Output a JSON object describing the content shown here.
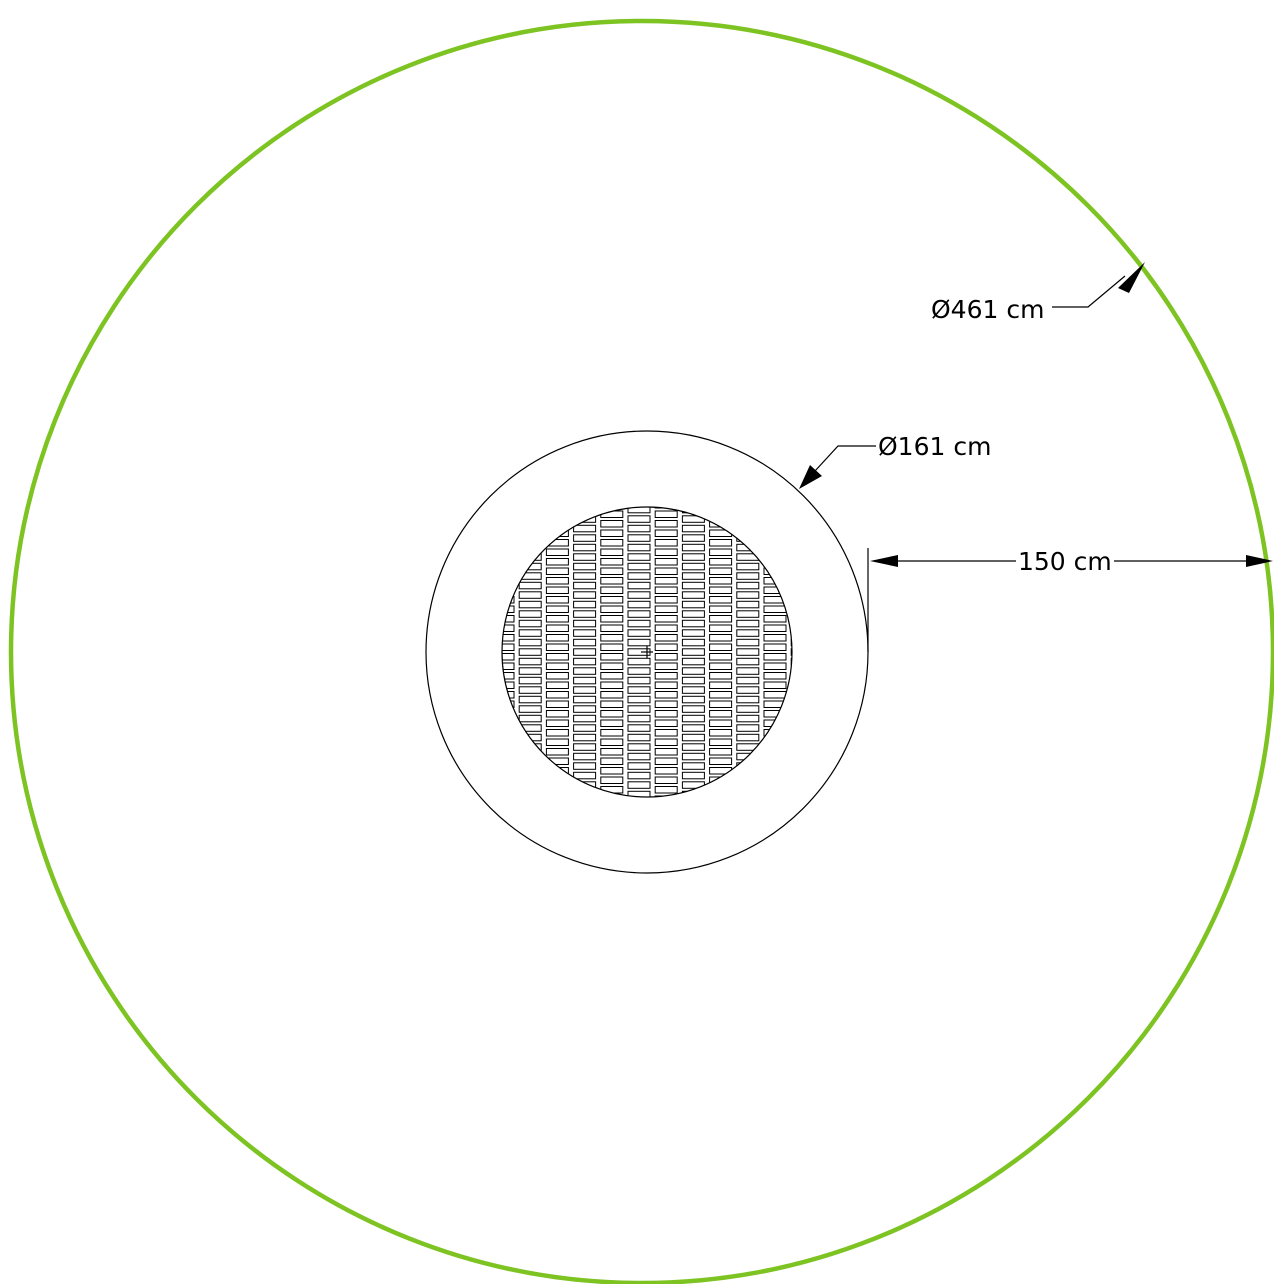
{
  "drawing": {
    "outer_diameter_label": "Ø461 cm",
    "ring_diameter_label": "Ø161 cm",
    "clearance_label": "150 cm",
    "colors": {
      "safety_zone": "#7dc322",
      "linework": "#000000",
      "background": "#ffffff"
    }
  }
}
